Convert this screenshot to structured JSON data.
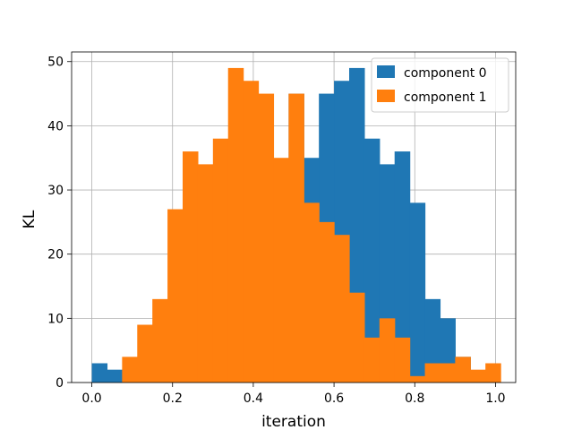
{
  "chart_data": {
    "type": "histogram",
    "title": "",
    "xlabel": "iteration",
    "ylabel": "KL",
    "xlim": [
      -0.05,
      1.05
    ],
    "ylim": [
      0,
      51.5
    ],
    "xticks": [
      "0.0",
      "0.2",
      "0.4",
      "0.6",
      "0.8",
      "1.0"
    ],
    "yticks": [
      "0",
      "10",
      "20",
      "30",
      "40",
      "50"
    ],
    "grid": true,
    "legend_position": "top-right",
    "bin_width": 0.0375,
    "bin_starts": [
      0.0,
      0.0375,
      0.075,
      0.1125,
      0.15,
      0.1875,
      0.225,
      0.2625,
      0.3,
      0.3375,
      0.375,
      0.4125,
      0.45,
      0.4875,
      0.525,
      0.5625,
      0.6,
      0.6375,
      0.675,
      0.7125,
      0.75,
      0.7875,
      0.825,
      0.8625,
      0.9,
      0.9375,
      0.975
    ],
    "series": [
      {
        "name": "component 0",
        "color": "#1f77b4",
        "values": [
          3,
          2,
          0,
          0,
          0,
          0,
          0,
          0,
          0,
          0,
          0,
          0,
          0,
          45,
          35,
          45,
          47,
          49,
          38,
          34,
          36,
          28,
          13,
          10,
          4,
          0,
          0
        ]
      },
      {
        "name": "component 1",
        "color": "#ff7f0e",
        "values": [
          0,
          0,
          4,
          9,
          13,
          27,
          36,
          34,
          38,
          49,
          47,
          45,
          35,
          45,
          28,
          25,
          23,
          14,
          7,
          10,
          7,
          1,
          3,
          3,
          4,
          2,
          3
        ]
      }
    ]
  }
}
